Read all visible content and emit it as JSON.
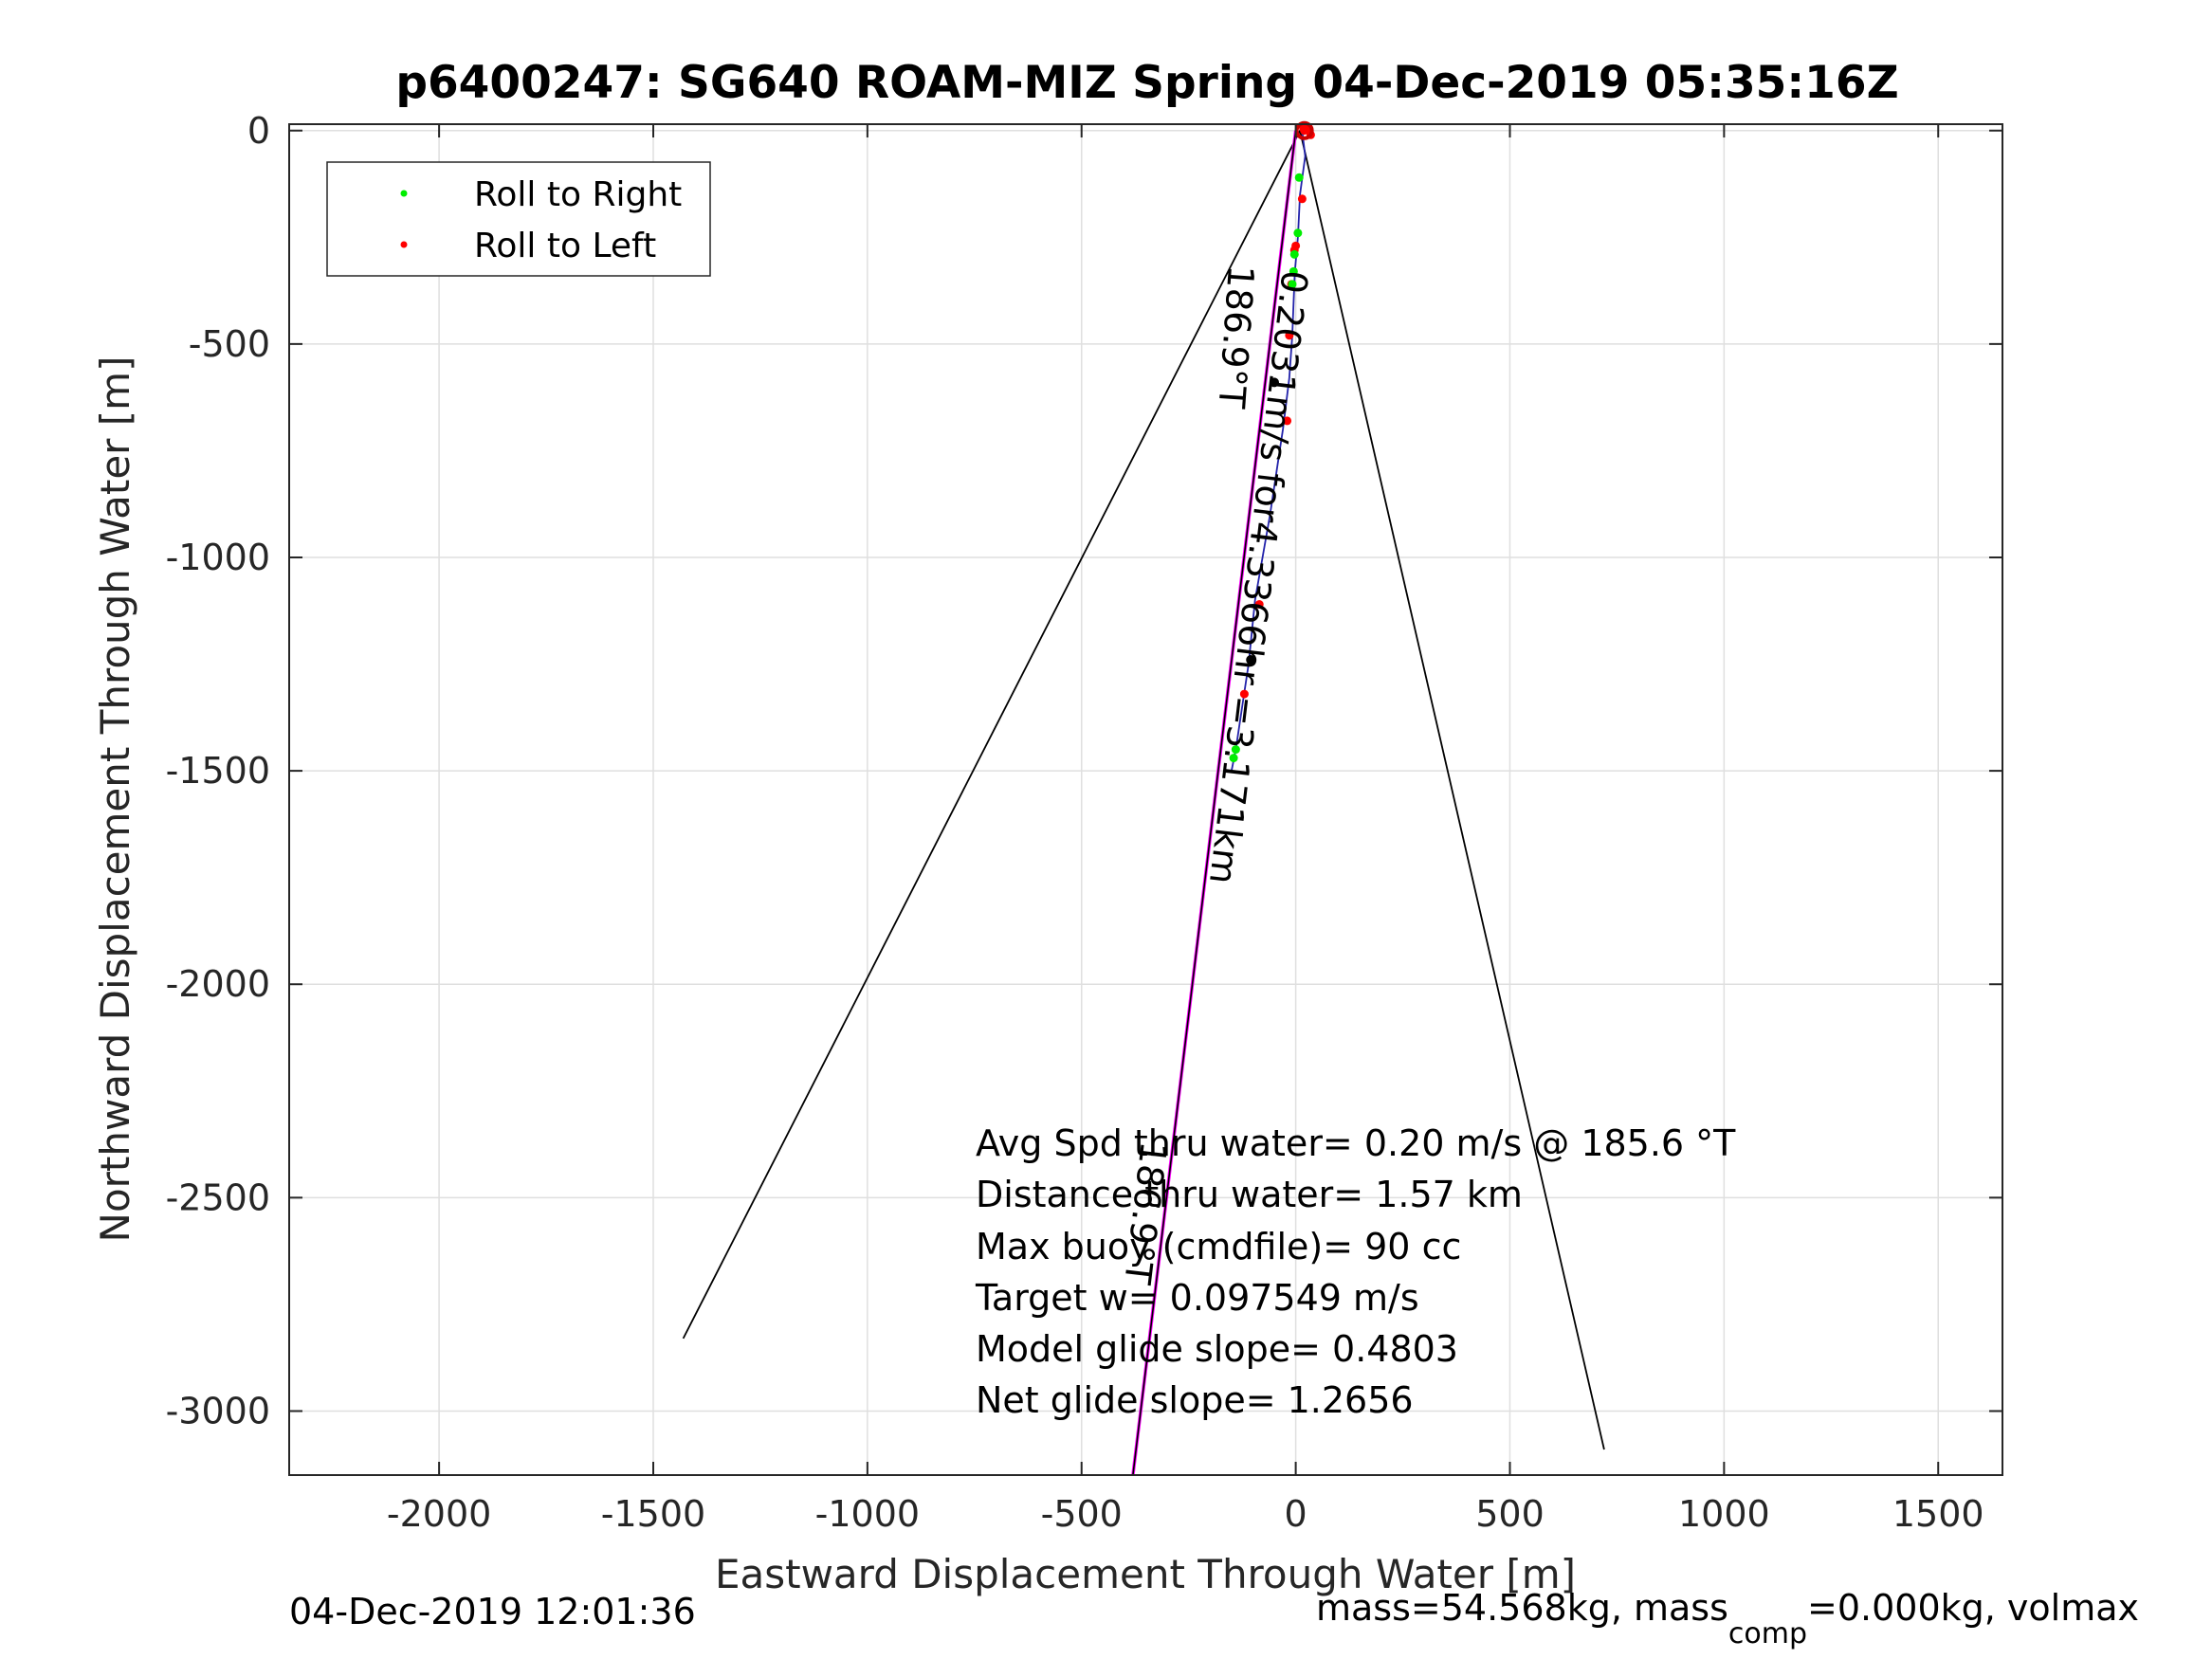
{
  "figure": {
    "title": "p6400247: SG640 ROAM-MIZ Spring 04-Dec-2019 05:35:16Z",
    "footer_left": "04-Dec-2019 12:01:36",
    "footer_right_prefix": "mass=54.568kg, mass",
    "footer_right_sub": "comp",
    "footer_right_suffix": "=0.000kg, volmax"
  },
  "chart_data": {
    "type": "line",
    "title": "p6400247: SG640 ROAM-MIZ Spring 04-Dec-2019 05:35:16Z",
    "xlabel": "Eastward Displacement Through Water [m]",
    "ylabel": "Northward Displacement Through Water [m]",
    "xlim": [
      -2350,
      1650
    ],
    "ylim": [
      -3150,
      15
    ],
    "xticks": [
      -2000,
      -1500,
      -1000,
      -500,
      0,
      500,
      1000,
      1500
    ],
    "yticks": [
      0,
      -500,
      -1000,
      -1500,
      -2000,
      -2500,
      -3000
    ],
    "xtick_labels": [
      "-2000",
      "-1500",
      "-1000",
      "-500",
      "0",
      "500",
      "1000",
      "1500"
    ],
    "ytick_labels": [
      "0",
      "-500",
      "-1000",
      "-1500",
      "-2000",
      "-2500",
      "-3000"
    ],
    "grid": true,
    "legend_position": "top-left",
    "legend": [
      {
        "label": "Roll to Right",
        "color": "#00ee00"
      },
      {
        "label": "Roll to Left",
        "color": "#ff0000"
      }
    ],
    "series": [
      {
        "color": "#000000",
        "x": [
          -1430,
          10,
          720
        ],
        "y": [
          -2830,
          0,
          -3090
        ]
      },
      {
        "color": "#ff00ff",
        "x": [
          0,
          -380
        ],
        "y": [
          0,
          -3150
        ]
      },
      {
        "color": "#000000",
        "x": [
          0,
          -380
        ],
        "y": [
          0,
          -3150
        ]
      },
      {
        "color": "#2222aa",
        "x": [
          15,
          22,
          10,
          5,
          -2,
          -5,
          -8,
          -15,
          -30,
          -60,
          -95,
          -110,
          -125,
          -140,
          -150
        ],
        "y": [
          0,
          -60,
          -150,
          -250,
          -330,
          -400,
          -480,
          -580,
          -700,
          -900,
          -1100,
          -1250,
          -1350,
          -1450,
          -1500
        ]
      }
    ],
    "points": {
      "roll_right": {
        "color": "#00ee00",
        "x": [
          8,
          5,
          -3,
          -5,
          -8,
          -140,
          -145
        ],
        "y": [
          -110,
          -240,
          -290,
          -330,
          -360,
          -1450,
          -1470
        ]
      },
      "roll_left": {
        "color": "#ff0000",
        "x": [
          20,
          18,
          25,
          30,
          35,
          15,
          0,
          -3,
          -10,
          -15,
          -20,
          -85,
          -120
        ],
        "y": [
          0,
          5,
          3,
          0,
          -10,
          -160,
          -270,
          -280,
          -360,
          -480,
          -680,
          -1110,
          -1320
        ]
      },
      "other": {
        "color": "#000000",
        "x": [
          -50,
          -105
        ],
        "y": [
          -590,
          -1240
        ]
      },
      "start": {
        "color": "#cc0000",
        "x": [
          20
        ],
        "y": [
          0
        ]
      }
    },
    "annotations": {
      "heading_label": "186.9°T",
      "speed_label": "0.2031m/s for4.3366hr =3.171km",
      "bottom_heading_label": "186.9°T",
      "stats": [
        "Avg Spd thru water=  0.20 m/s @ 185.6 °T",
        "Distance thru water=  1.57 km",
        "Max buoy (cmdfile)= 90 cc",
        "Target w= 0.097549 m/s",
        "Model glide slope= 0.4803",
        "Net glide slope= 1.2656"
      ]
    }
  }
}
